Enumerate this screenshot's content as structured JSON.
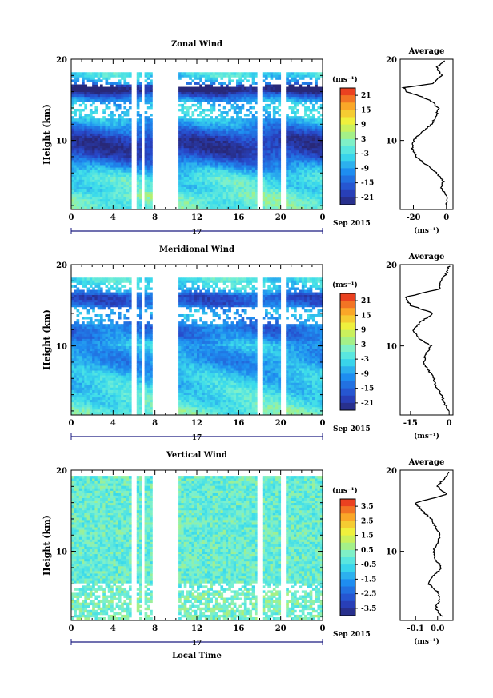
{
  "chart_data": [
    {
      "type": "heatmap",
      "title": "Zonal Wind",
      "ylabel": "Height (km)",
      "y_ticks": [
        "10",
        "20"
      ],
      "x_ticks": [
        "0",
        "4",
        "8",
        "12",
        "16",
        "20",
        "0"
      ],
      "date_label": "17",
      "date_suffix": "Sep 2015",
      "xlim": [
        0,
        24
      ],
      "ylim": [
        1.5,
        20
      ],
      "unit": "(ms⁻¹)",
      "colorbar_ticks": [
        "21",
        "15",
        "9",
        "3",
        "-3",
        "-9",
        "-15",
        "-21"
      ],
      "colorbar_range": [
        -24,
        24
      ],
      "data_gaps_hours": [
        [
          5.8,
          6.3
        ],
        [
          6.7,
          7.0
        ],
        [
          7.7,
          10.3
        ],
        [
          17.7,
          18.2
        ],
        [
          20.0,
          20.4
        ]
      ],
      "profile": {
        "title": "Average",
        "xlabel": "(ms⁻¹)",
        "x_ticks": [
          "-20",
          "0"
        ],
        "xlim": [
          -28,
          4
        ],
        "heights": [
          2,
          3,
          4,
          5,
          6,
          7,
          8,
          9,
          10,
          11,
          12,
          13,
          14,
          15,
          16,
          16.5,
          17,
          18,
          19,
          19.8
        ],
        "values": [
          0,
          1,
          -3,
          -2,
          -6,
          -12,
          -18,
          -21,
          -20,
          -15,
          -9,
          -6,
          -5,
          -10,
          -24,
          -26,
          -8,
          -3,
          -6,
          -1
        ]
      }
    },
    {
      "type": "heatmap",
      "title": "Meridional Wind",
      "ylabel": "Height (km)",
      "y_ticks": [
        "10",
        "20"
      ],
      "x_ticks": [
        "0",
        "4",
        "8",
        "12",
        "16",
        "20",
        "0"
      ],
      "date_label": "17",
      "date_suffix": "Sep 2015",
      "xlim": [
        0,
        24
      ],
      "ylim": [
        1.5,
        20
      ],
      "unit": "(ms⁻¹)",
      "colorbar_ticks": [
        "21",
        "15",
        "9",
        "3",
        "-3",
        "-9",
        "-15",
        "-21"
      ],
      "colorbar_range": [
        -24,
        24
      ],
      "data_gaps_hours": [
        [
          5.8,
          6.3
        ],
        [
          6.7,
          7.0
        ],
        [
          7.7,
          10.3
        ],
        [
          17.7,
          18.2
        ],
        [
          20.0,
          20.4
        ]
      ],
      "profile": {
        "title": "Average",
        "xlabel": "(ms⁻¹)",
        "x_ticks": [
          "-15",
          "0"
        ],
        "xlim": [
          -19,
          1.5
        ],
        "heights": [
          2,
          3,
          4,
          5,
          6,
          7,
          8,
          9,
          10,
          11,
          12,
          13,
          14,
          15,
          16,
          17,
          18,
          19,
          19.8
        ],
        "values": [
          0,
          -2,
          -3,
          -5,
          -6,
          -8,
          -10,
          -9,
          -7,
          -12,
          -14,
          -11,
          -6,
          -15,
          -17,
          -4,
          -3,
          -1,
          0
        ]
      }
    },
    {
      "type": "heatmap",
      "title": "Vertical Wind",
      "ylabel": "Height (km)",
      "y_ticks": [
        "10",
        "20"
      ],
      "x_ticks": [
        "0",
        "4",
        "8",
        "12",
        "16",
        "20",
        "0"
      ],
      "date_label": "17",
      "date_suffix": "Sep 2015",
      "xlabel": "Local Time",
      "xlim": [
        0,
        24
      ],
      "ylim": [
        1.5,
        20
      ],
      "unit": "(ms⁻¹)",
      "colorbar_ticks": [
        "3.5",
        "2.5",
        "1.5",
        "0.5",
        "-0.5",
        "-1.5",
        "-2.5",
        "-3.5"
      ],
      "colorbar_range": [
        -4,
        4
      ],
      "data_gaps_hours": [
        [
          5.8,
          6.3
        ],
        [
          6.7,
          7.0
        ],
        [
          7.7,
          10.3
        ],
        [
          17.7,
          18.2
        ],
        [
          20.0,
          20.4
        ]
      ],
      "profile": {
        "title": "Average",
        "xlabel": "(ms⁻¹)",
        "x_ticks": [
          "-0.1",
          "0.0"
        ],
        "xlim": [
          -0.17,
          0.07
        ],
        "heights": [
          2,
          3,
          4,
          5,
          6,
          7,
          8,
          9,
          10,
          11,
          12,
          13,
          14,
          15,
          16,
          17,
          18,
          19,
          19.8
        ],
        "values": [
          0.02,
          -0.01,
          0.01,
          0.0,
          -0.04,
          -0.02,
          0.02,
          -0.01,
          -0.02,
          0.0,
          0.01,
          -0.01,
          -0.03,
          -0.07,
          -0.1,
          0.04,
          0.0,
          0.03,
          0.05
        ]
      }
    }
  ]
}
